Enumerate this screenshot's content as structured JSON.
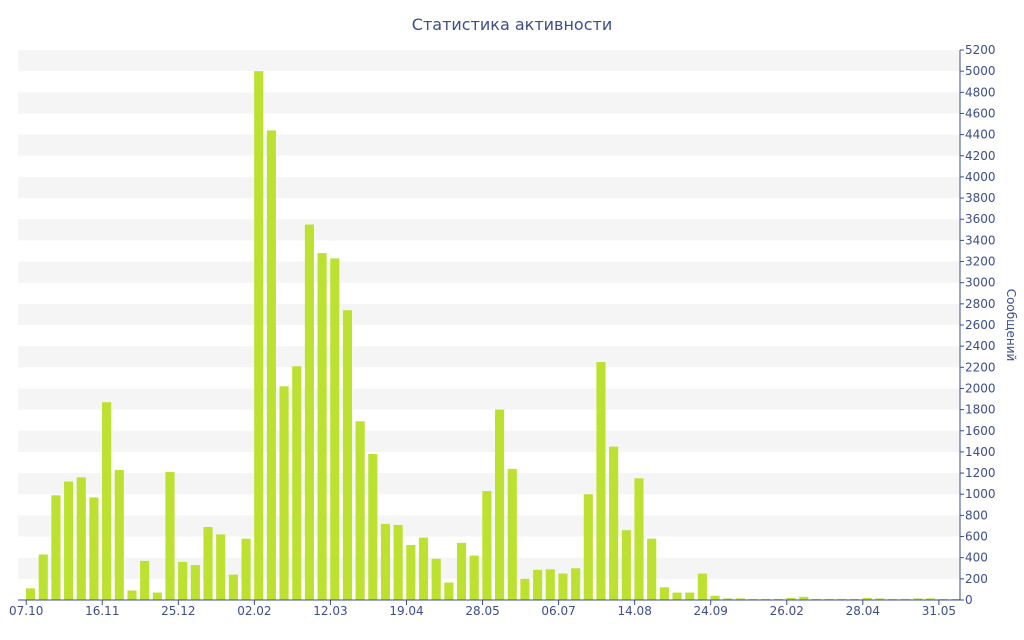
{
  "chart_data": {
    "type": "bar",
    "title": "Статистика активности",
    "ylabel": "Сообщений",
    "xlabel": "",
    "ylim": [
      0,
      5200
    ],
    "ytick_step": 200,
    "y_axis_position": "right",
    "grid": "alternating horizontal bands",
    "colors": {
      "bar": "#bce130",
      "text": "#3c4d8c",
      "band": "#f5f5f5",
      "axis": "#3c4d8c"
    },
    "x_tick_labels": [
      {
        "label": "07.10",
        "index": 0
      },
      {
        "label": "16.11",
        "index": 6
      },
      {
        "label": "25.12",
        "index": 12
      },
      {
        "label": "02.02",
        "index": 18
      },
      {
        "label": "12.03",
        "index": 24
      },
      {
        "label": "19.04",
        "index": 30
      },
      {
        "label": "28.05",
        "index": 36
      },
      {
        "label": "06.07",
        "index": 42
      },
      {
        "label": "14.08",
        "index": 48
      },
      {
        "label": "24.09",
        "index": 54
      },
      {
        "label": "26.02",
        "index": 60
      },
      {
        "label": "28.04",
        "index": 66
      },
      {
        "label": "31.05",
        "index": 72
      }
    ],
    "values": [
      110,
      430,
      990,
      1120,
      1160,
      970,
      1870,
      1230,
      90,
      370,
      70,
      1210,
      360,
      330,
      690,
      620,
      240,
      580,
      5000,
      4440,
      2020,
      2210,
      3550,
      3280,
      3230,
      2740,
      1690,
      1380,
      720,
      710,
      520,
      590,
      390,
      165,
      540,
      420,
      1030,
      1800,
      1240,
      200,
      285,
      290,
      250,
      300,
      1000,
      2250,
      1450,
      660,
      1150,
      580,
      120,
      70,
      70,
      250,
      40,
      15,
      15,
      10,
      10,
      10,
      20,
      30,
      10,
      10,
      10,
      10,
      20,
      15,
      10,
      10,
      15,
      15,
      10,
      10
    ]
  }
}
